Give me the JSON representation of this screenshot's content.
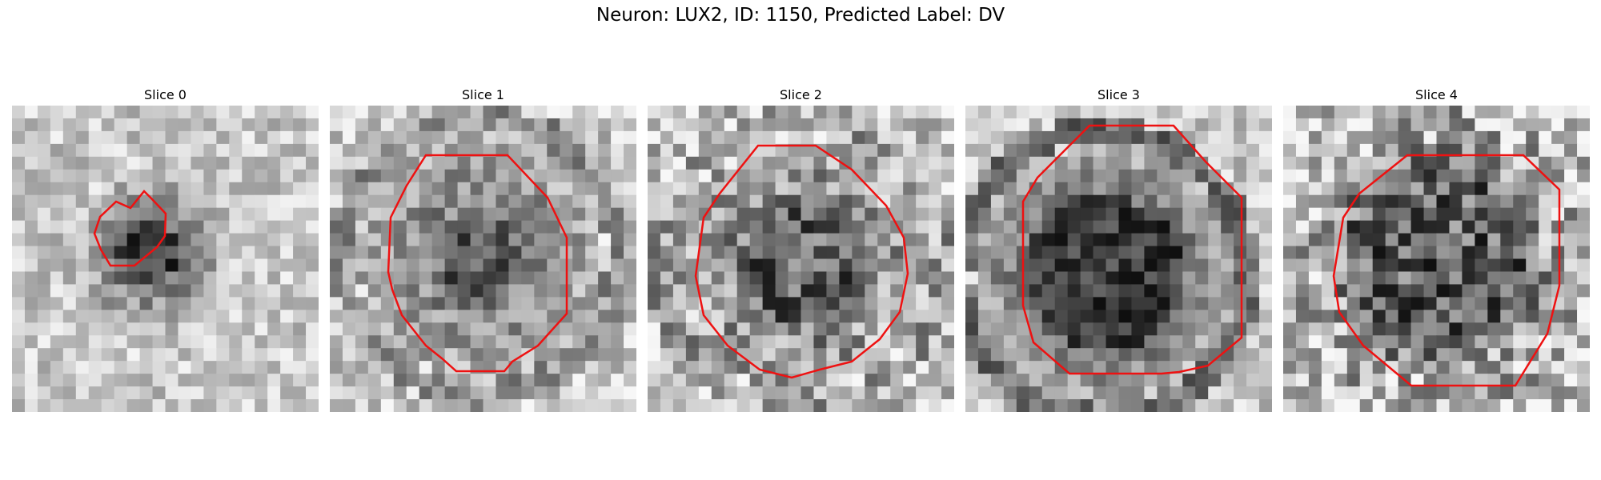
{
  "figure": {
    "title": "Neuron: LUX2, ID: 1150, Predicted Label: DV"
  },
  "panels": [
    {
      "title": "Slice 0",
      "roi_color": "#ee1111"
    },
    {
      "title": "Slice 1",
      "roi_color": "#ee1111"
    },
    {
      "title": "Slice 2",
      "roi_color": "#ee1111"
    },
    {
      "title": "Slice 3",
      "roi_color": "#ee1111"
    },
    {
      "title": "Slice 4",
      "roi_color": "#ee1111"
    }
  ]
}
